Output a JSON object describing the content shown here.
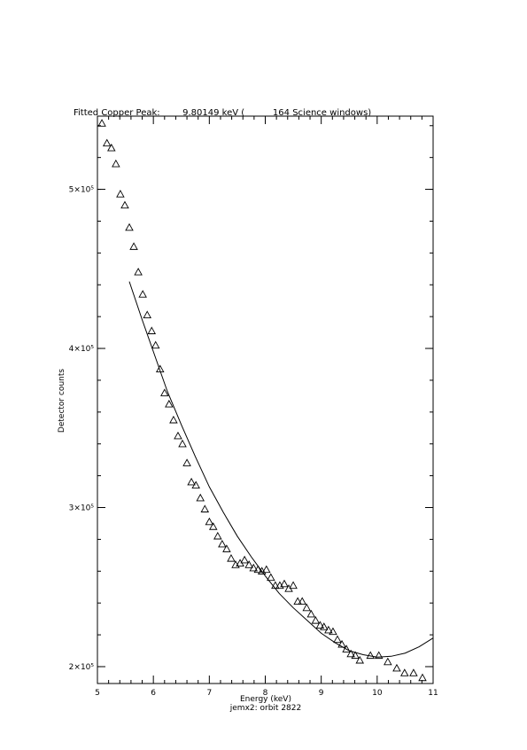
{
  "chart_data": {
    "type": "scatter",
    "title": "Fitted Copper Peak:        9.80149 keV (          164 Science windows)",
    "x_label": "Energy (keV)",
    "subtitle": "jemx2: orbit 2822",
    "y_label": "Detector counts",
    "xlim": [
      5,
      11
    ],
    "ylim": [
      189400,
      546000
    ],
    "xticks": [
      5,
      6,
      7,
      8,
      9,
      10,
      11
    ],
    "yticks": [
      {
        "value": 200000,
        "label": "2×10⁵"
      },
      {
        "value": 300000,
        "label": "3×10⁵"
      },
      {
        "value": 400000,
        "label": "4×10⁵"
      },
      {
        "value": 500000,
        "label": "5×10⁵"
      }
    ],
    "minor_ticks": 5,
    "color": "#000000",
    "series": [
      {
        "style": "triangle",
        "color": "#000000",
        "x": [
          5.08,
          5.17,
          5.25,
          5.33,
          5.41,
          5.49,
          5.57,
          5.65,
          5.73,
          5.81,
          5.89,
          5.97,
          6.04,
          6.12,
          6.2,
          6.28,
          6.36,
          6.44,
          6.52,
          6.6,
          6.68,
          6.76,
          6.84,
          6.92,
          7.0,
          7.07,
          7.15,
          7.23,
          7.31,
          7.39,
          7.47,
          7.55,
          7.63,
          7.71,
          7.79,
          7.87,
          7.94,
          8.02,
          8.1,
          8.18,
          8.26,
          8.34,
          8.42,
          8.5,
          8.58,
          8.66,
          8.74,
          8.82,
          8.9,
          8.98,
          9.05,
          9.13,
          9.21,
          9.29,
          9.37,
          9.45,
          9.53,
          9.61,
          9.69,
          9.88,
          10.03,
          10.19,
          10.35,
          10.49,
          10.65,
          10.81
        ],
        "values": [
          541500,
          529000,
          526000,
          516000,
          497000,
          490000,
          476000,
          464000,
          448000,
          434000,
          421000,
          411000,
          402000,
          387000,
          372000,
          365000,
          355000,
          345000,
          340000,
          328000,
          316000,
          314000,
          306000,
          299000,
          291000,
          288000,
          282000,
          277000,
          274000,
          268000,
          264000,
          265000,
          267000,
          264000,
          262000,
          261000,
          260000,
          261000,
          256000,
          251000,
          251000,
          252000,
          249000,
          251000,
          241000,
          241000,
          237000,
          233000,
          229000,
          226000,
          225000,
          223000,
          222000,
          217000,
          214000,
          211000,
          208000,
          207000,
          204000,
          207000,
          207000,
          203000,
          199000,
          196000,
          196000,
          193000
        ]
      },
      {
        "style": "line",
        "color": "#000000",
        "x": [
          5.57,
          5.8,
          6.0,
          6.25,
          6.5,
          6.75,
          7.0,
          7.25,
          7.5,
          7.75,
          8.0,
          8.25,
          8.5,
          8.75,
          9.0,
          9.25,
          9.5,
          9.75,
          10.0,
          10.25,
          10.5,
          10.75,
          11.0
        ],
        "values": [
          442000,
          418000,
          398000,
          373000,
          352000,
          332000,
          313000,
          297000,
          282000,
          269000,
          257000,
          246000,
          237000,
          229000,
          221000,
          215000,
          210000,
          207500,
          206000,
          206500,
          208500,
          212500,
          218000
        ]
      }
    ]
  }
}
